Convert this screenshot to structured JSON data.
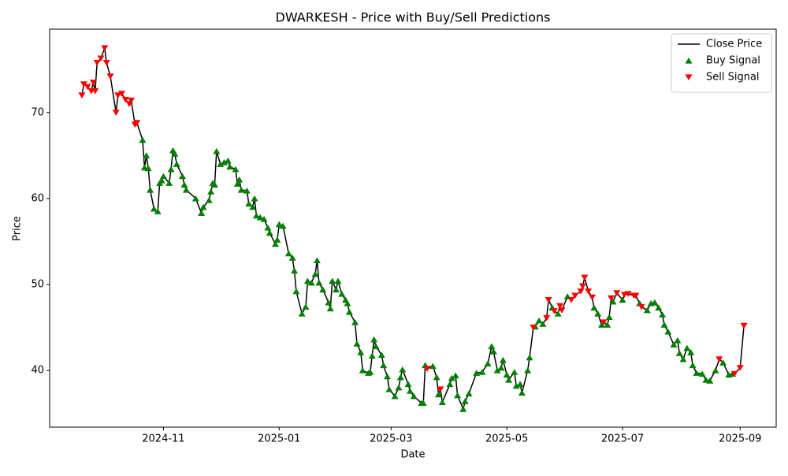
{
  "chart_data": {
    "type": "line",
    "title": "DWARKESH - Price with Buy/Sell Predictions",
    "x_label": "Date",
    "y_label": "Price",
    "xlim": [
      19968,
      20351
    ],
    "ylim": [
      33.4,
      79.7
    ],
    "xticks": [
      {
        "value": 20028,
        "label": "2024-11"
      },
      {
        "value": 20089,
        "label": "2025-01"
      },
      {
        "value": 20148,
        "label": "2025-03"
      },
      {
        "value": 20209,
        "label": "2025-05"
      },
      {
        "value": 20270,
        "label": "2025-07"
      },
      {
        "value": 20332,
        "label": "2025-09"
      }
    ],
    "yticks": [
      40,
      50,
      60,
      70
    ],
    "grid": false,
    "legend": "upper right",
    "series": [
      {
        "name": "Close Price",
        "type": "line",
        "color": "#000000",
        "x": [
          19985,
          19986,
          19988,
          19990,
          19991,
          19992,
          19993,
          19995,
          19997,
          19998,
          20000,
          20003,
          20004,
          20006,
          20008,
          20010,
          20011,
          20013,
          20014,
          20017,
          20018,
          20019,
          20020,
          20021,
          20023,
          20025,
          20026,
          20027,
          20028,
          20031,
          20032,
          20033,
          20034,
          20035,
          20038,
          20039,
          20040,
          20045,
          20048,
          20049,
          20052,
          20053,
          20054,
          20055,
          20056,
          20058,
          20060,
          20062,
          20063,
          20066,
          20067,
          20068,
          20069,
          20072,
          20073,
          20075,
          20076,
          20077,
          20079,
          20081,
          20083,
          20084,
          20087,
          20088,
          20089,
          20091,
          20094,
          20096,
          20097,
          20098,
          20101,
          20103,
          20104,
          20106,
          20108,
          20109,
          20110,
          20112,
          20115,
          20116,
          20117,
          20119,
          20120,
          20122,
          20124,
          20125,
          20126,
          20129,
          20130,
          20132,
          20133,
          20136,
          20137,
          20138,
          20139,
          20140,
          20143,
          20144,
          20146,
          20147,
          20150,
          20152,
          20153,
          20154,
          20157,
          20158,
          20160,
          20164,
          20165,
          20166,
          20167,
          20170,
          20172,
          20173,
          20174,
          20175,
          20179,
          20180,
          20182,
          20183,
          20186,
          20187,
          20189,
          20193,
          20196,
          20199,
          20201,
          20202,
          20204,
          20206,
          20207,
          20209,
          20210,
          20213,
          20214,
          20216,
          20217,
          20220,
          20221,
          20223,
          20224,
          20226,
          20228,
          20230,
          20231,
          20233,
          20234,
          20236,
          20237,
          20238,
          20241,
          20243,
          20245,
          20248,
          20249,
          20250,
          20252,
          20254,
          20255,
          20257,
          20259,
          20260,
          20262,
          20263,
          20264,
          20265,
          20267,
          20270,
          20271,
          20273,
          20276,
          20277,
          20279,
          20280,
          20283,
          20285,
          20287,
          20289,
          20291,
          20292,
          20294,
          20297,
          20299,
          20300,
          20302,
          20304,
          20306,
          20307,
          20309,
          20312,
          20314,
          20316,
          20319,
          20321,
          20323,
          20326,
          20328,
          20329,
          20332,
          20334
        ],
        "values": [
          72,
          73.3,
          73,
          72.5,
          73.5,
          72.5,
          75.8,
          76.3,
          77.5,
          75.8,
          74.2,
          70,
          72,
          72.2,
          71.5,
          71,
          71.4,
          68.6,
          68.8,
          66.8,
          63.6,
          65,
          63.5,
          61,
          58.8,
          58.5,
          61.8,
          62.1,
          62.6,
          61.8,
          63.4,
          65.6,
          65.2,
          64,
          62.6,
          61.6,
          61,
          60,
          58.3,
          59,
          59.8,
          60.8,
          61.8,
          61.6,
          65.5,
          64,
          64.2,
          64.4,
          63.7,
          63.4,
          61.7,
          62.2,
          61,
          60.9,
          59.4,
          59,
          60,
          58,
          57.8,
          57.6,
          56.6,
          56,
          54.7,
          55.2,
          57,
          56.8,
          53.6,
          53.1,
          51.6,
          49.2,
          46.6,
          47.4,
          50.4,
          50.2,
          51.2,
          52.8,
          50.2,
          49.4,
          47.9,
          47.2,
          50.4,
          49.4,
          50.4,
          48.9,
          48.2,
          47.8,
          46.8,
          45.6,
          43.1,
          42.1,
          40,
          39.7,
          39.8,
          41.7,
          43.6,
          42.8,
          41.8,
          40.6,
          39.3,
          37.8,
          37,
          38,
          39.2,
          40.1,
          38.4,
          37.6,
          37,
          36.2,
          36.2,
          40.6,
          40.2,
          40.5,
          39.2,
          37.2,
          37.8,
          36.3,
          38.4,
          39.1,
          39.4,
          37.1,
          35.5,
          36.4,
          37.3,
          39.7,
          39.8,
          40.8,
          42.8,
          42.2,
          40,
          40.3,
          41.2,
          39.5,
          38.9,
          39.8,
          38.2,
          38.4,
          37.4,
          40,
          41.5,
          45,
          45.1,
          45.8,
          45.4,
          46.1,
          48.2,
          47.3,
          46.9,
          46.6,
          47.5,
          47,
          48.6,
          48.2,
          48.7,
          49.2,
          49.8,
          50.8,
          49.2,
          48.5,
          47.3,
          46.6,
          45.3,
          45.6,
          45.3,
          46.2,
          48.4,
          48,
          49,
          48.2,
          48.8,
          48.9,
          48.7,
          48.7,
          47.8,
          47.4,
          47,
          47.8,
          47.9,
          47.3,
          46.5,
          45.3,
          44.5,
          43,
          43.5,
          42,
          41.3,
          42.6,
          42.1,
          40.6,
          39.7,
          39.6,
          38.9,
          38.8,
          40,
          41.3,
          40.9,
          39.5,
          39.6,
          39.6,
          40.3,
          45.2
        ]
      },
      {
        "name": "Buy Signal",
        "type": "scatter",
        "marker": "^",
        "color": "#008000",
        "x": [
          20017,
          20018,
          20019,
          20020,
          20021,
          20023,
          20025,
          20026,
          20027,
          20028,
          20031,
          20032,
          20033,
          20034,
          20035,
          20038,
          20039,
          20040,
          20045,
          20048,
          20049,
          20052,
          20053,
          20054,
          20055,
          20056,
          20058,
          20060,
          20062,
          20063,
          20066,
          20067,
          20068,
          20069,
          20072,
          20073,
          20075,
          20076,
          20077,
          20079,
          20081,
          20083,
          20084,
          20087,
          20088,
          20089,
          20091,
          20094,
          20096,
          20097,
          20098,
          20101,
          20103,
          20104,
          20106,
          20108,
          20109,
          20110,
          20112,
          20115,
          20116,
          20117,
          20119,
          20120,
          20122,
          20124,
          20125,
          20126,
          20129,
          20130,
          20132,
          20133,
          20136,
          20137,
          20138,
          20139,
          20140,
          20143,
          20144,
          20146,
          20147,
          20150,
          20152,
          20153,
          20154,
          20157,
          20158,
          20160,
          20164,
          20165,
          20166,
          20170,
          20172,
          20173,
          20175,
          20179,
          20180,
          20182,
          20183,
          20186,
          20187,
          20189,
          20193,
          20196,
          20199,
          20201,
          20202,
          20204,
          20206,
          20207,
          20209,
          20210,
          20213,
          20214,
          20216,
          20217,
          20220,
          20221,
          20224,
          20226,
          20228,
          20233,
          20236,
          20241,
          20255,
          20257,
          20259,
          20262,
          20263,
          20265,
          20270,
          20279,
          20283,
          20285,
          20287,
          20289,
          20291,
          20292,
          20294,
          20297,
          20299,
          20300,
          20302,
          20304,
          20306,
          20307,
          20309,
          20312,
          20314,
          20316,
          20319,
          20323,
          20326,
          20328
        ],
        "values": [
          66.8,
          63.6,
          65,
          63.5,
          61,
          58.8,
          58.5,
          61.8,
          62.1,
          62.6,
          61.8,
          63.4,
          65.6,
          65.2,
          64,
          62.6,
          61.6,
          61,
          60,
          58.3,
          59,
          59.8,
          60.8,
          61.8,
          61.6,
          65.5,
          64,
          64.2,
          64.4,
          63.7,
          63.4,
          61.7,
          62.2,
          61,
          60.9,
          59.4,
          59,
          60,
          58,
          57.8,
          57.6,
          56.6,
          56,
          54.7,
          55.2,
          57,
          56.8,
          53.6,
          53.1,
          51.6,
          49.2,
          46.6,
          47.4,
          50.4,
          50.2,
          51.2,
          52.8,
          50.2,
          49.4,
          47.9,
          47.2,
          50.4,
          49.4,
          50.4,
          48.9,
          48.2,
          47.8,
          46.8,
          45.6,
          43.1,
          42.1,
          40,
          39.7,
          39.8,
          41.7,
          43.6,
          42.8,
          41.8,
          40.6,
          39.3,
          37.8,
          37,
          38,
          39.2,
          40.1,
          38.4,
          37.6,
          37,
          36.2,
          36.2,
          40.6,
          40.5,
          39.2,
          37.2,
          36.3,
          38.4,
          39.1,
          39.4,
          37.1,
          35.5,
          36.4,
          37.3,
          39.7,
          39.8,
          40.8,
          42.8,
          42.2,
          40,
          40.3,
          41.2,
          39.5,
          38.9,
          39.8,
          38.2,
          38.4,
          37.4,
          40,
          41.5,
          45.1,
          45.8,
          45.4,
          47.3,
          46.6,
          48.6,
          47.3,
          46.6,
          45.3,
          45.3,
          46.2,
          48,
          48.2,
          47.8,
          47,
          47.8,
          47.9,
          47.3,
          46.5,
          45.3,
          44.5,
          43,
          43.5,
          42,
          41.3,
          42.6,
          42.1,
          40.6,
          39.7,
          39.6,
          38.9,
          38.8,
          40,
          40.9,
          39.5,
          39.6
        ]
      },
      {
        "name": "Sell Signal",
        "type": "scatter",
        "marker": "v",
        "color": "#ff0000",
        "x": [
          19985,
          19986,
          19988,
          19990,
          19991,
          19992,
          19993,
          19995,
          19997,
          19998,
          20000,
          20003,
          20004,
          20006,
          20008,
          20010,
          20011,
          20013,
          20014,
          20167,
          20174,
          20223,
          20230,
          20231,
          20234,
          20237,
          20238,
          20243,
          20245,
          20248,
          20249,
          20250,
          20252,
          20254,
          20260,
          20264,
          20267,
          20271,
          20273,
          20276,
          20277,
          20280,
          20321,
          20329,
          20332,
          20334
        ],
        "values": [
          72,
          73.3,
          73,
          72.5,
          73.5,
          72.5,
          75.8,
          76.3,
          77.5,
          75.8,
          74.2,
          70,
          72,
          72.2,
          71.5,
          71,
          71.4,
          68.6,
          68.8,
          40.2,
          37.8,
          45,
          46.1,
          48.2,
          46.9,
          47.5,
          47,
          48.2,
          48.7,
          49.2,
          49.8,
          50.8,
          49.2,
          48.5,
          45.6,
          48.4,
          49,
          48.8,
          48.9,
          48.7,
          48.7,
          47.4,
          41.3,
          39.6,
          40.3,
          45.2
        ]
      }
    ]
  }
}
